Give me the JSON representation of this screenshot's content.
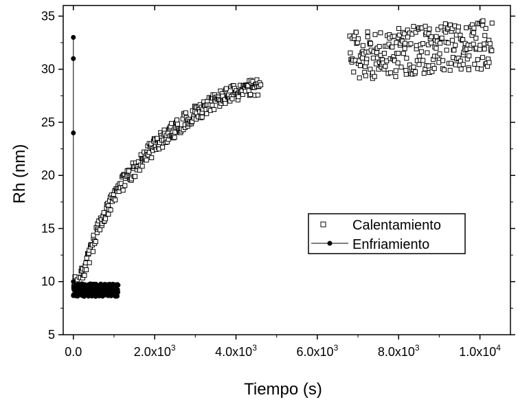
{
  "chart_data": {
    "type": "scatter",
    "title": "",
    "xlabel": "Tiempo (s)",
    "ylabel": "Rh (nm)",
    "xlim": [
      -250,
      10750
    ],
    "ylim": [
      5,
      36
    ],
    "x_tick_values": [
      0,
      2000,
      4000,
      6000,
      8000,
      10000
    ],
    "x_ticks": [
      {
        "mantissa": "0.0",
        "exponent": ""
      },
      {
        "mantissa": "2.0x10",
        "exponent": "3"
      },
      {
        "mantissa": "4.0x10",
        "exponent": "3"
      },
      {
        "mantissa": "6.0x10",
        "exponent": "3"
      },
      {
        "mantissa": "8.0x10",
        "exponent": "3"
      },
      {
        "mantissa": "1.0x10",
        "exponent": "4"
      }
    ],
    "y_ticks": [
      5,
      10,
      15,
      20,
      25,
      30,
      35
    ],
    "legend_position": "center-right",
    "series": [
      {
        "name": "Calentamiento",
        "marker": "open-square",
        "color": "#000000",
        "trend": [
          [
            0,
            9.5
          ],
          [
            200,
            10.5
          ],
          [
            400,
            12.5
          ],
          [
            600,
            14.8
          ],
          [
            800,
            16.5
          ],
          [
            1000,
            17.8
          ],
          [
            1200,
            19.3
          ],
          [
            1500,
            20.6
          ],
          [
            1800,
            22.0
          ],
          [
            2100,
            23.1
          ],
          [
            2400,
            24.1
          ],
          [
            2700,
            25.0
          ],
          [
            3000,
            25.9
          ],
          [
            3300,
            26.6
          ],
          [
            3600,
            27.2
          ],
          [
            3900,
            27.7
          ],
          [
            4200,
            28.0
          ],
          [
            4600,
            28.4
          ]
        ],
        "trend_point_count": 330,
        "trend_spread": 0.8,
        "plateau": {
          "x_range": [
            6800,
            10300
          ],
          "y_center": 31.8,
          "y_spread": 2.3,
          "point_count": 260
        }
      },
      {
        "name": "Enfriamiento",
        "marker": "filled-circle-line",
        "color": "#000000",
        "vertical_line_points": [
          [
            0,
            33
          ],
          [
            0,
            31
          ],
          [
            0,
            24
          ],
          [
            0,
            10.0
          ]
        ],
        "cluster": {
          "x_range": [
            0,
            1100
          ],
          "y_center": 9.2,
          "y_spread": 0.6,
          "point_count": 200
        }
      }
    ]
  }
}
